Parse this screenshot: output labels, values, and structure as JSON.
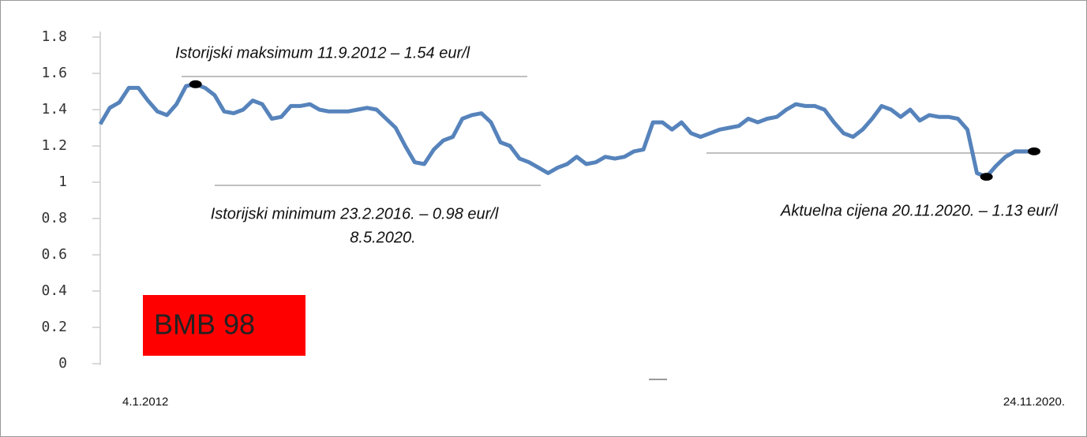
{
  "chart_data": {
    "type": "line",
    "badge": "BMB 98",
    "annotations": [
      "Istorijski maksimum 11.9.2012 – 1.54 eur/l",
      "Istorijski minimum 23.2.2016. – 0.98 eur/l",
      "8.5.2020.",
      "Aktuelna cijena 20.11.2020. – 1.13 eur/l"
    ],
    "categories": [
      "4.1.2012",
      null,
      null,
      null,
      null,
      null,
      null,
      null,
      null,
      null,
      null,
      null,
      null,
      null,
      null,
      null,
      null,
      null,
      null,
      null,
      null,
      null,
      null,
      null,
      null,
      null,
      null,
      null,
      null,
      null,
      null,
      null,
      null,
      null,
      null,
      null,
      null,
      null,
      null,
      null,
      null,
      null,
      null,
      null,
      null,
      null,
      null,
      null,
      null,
      null,
      null,
      null,
      null,
      null,
      null,
      null,
      null,
      null,
      null,
      null,
      null,
      null,
      null,
      null,
      null,
      null,
      null,
      null,
      null,
      null,
      null,
      null,
      null,
      null,
      null,
      null,
      null,
      null,
      null,
      null,
      null,
      null,
      null,
      null,
      null,
      null,
      null,
      null,
      null,
      null,
      null,
      null,
      null,
      null,
      null,
      null,
      null,
      null,
      "24.11.2020."
    ],
    "values": [
      1.32,
      1.41,
      1.44,
      1.52,
      1.52,
      1.45,
      1.39,
      1.37,
      1.43,
      1.53,
      1.54,
      1.52,
      1.48,
      1.39,
      1.38,
      1.4,
      1.45,
      1.43,
      1.35,
      1.36,
      1.42,
      1.42,
      1.43,
      1.4,
      1.39,
      1.39,
      1.39,
      1.4,
      1.41,
      1.4,
      1.35,
      1.3,
      1.2,
      1.11,
      1.1,
      1.18,
      1.23,
      1.25,
      1.35,
      1.37,
      1.38,
      1.33,
      1.22,
      1.2,
      1.13,
      1.11,
      1.08,
      1.05,
      1.08,
      1.1,
      1.14,
      1.1,
      1.11,
      1.14,
      1.13,
      1.14,
      1.17,
      1.18,
      1.33,
      1.33,
      1.29,
      1.33,
      1.27,
      1.25,
      1.27,
      1.29,
      1.3,
      1.31,
      1.35,
      1.33,
      1.35,
      1.36,
      1.4,
      1.43,
      1.42,
      1.42,
      1.4,
      1.33,
      1.27,
      1.25,
      1.29,
      1.35,
      1.42,
      1.4,
      1.36,
      1.4,
      1.34,
      1.37,
      1.36,
      1.36,
      1.35,
      1.29,
      1.05,
      1.03,
      1.09,
      1.14,
      1.17,
      1.17,
      1.17
    ],
    "color": "#5683bb",
    "ylim": [
      0,
      1.8
    ],
    "yticks": [
      0,
      0.2,
      0.4,
      0.6,
      0.8,
      1,
      1.2,
      1.4,
      1.6,
      1.8
    ],
    "grid": false
  }
}
